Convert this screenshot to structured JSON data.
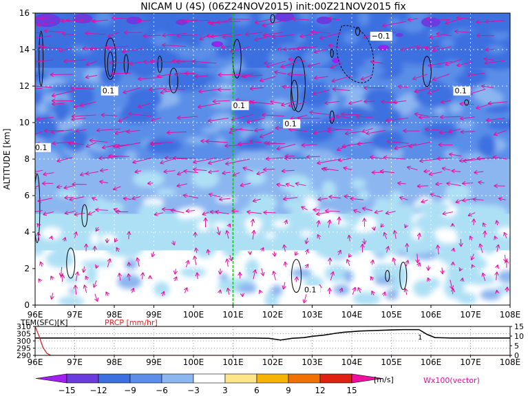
{
  "title": "NICAM U (4S) (06Z24NOV2015) init:00Z21NOV2015 fix",
  "colors": {
    "c_m18": "#a020f0",
    "c_m15": "#6a3ce0",
    "c_m12": "#3c6fe0",
    "c_m9": "#5a8ee8",
    "c_m6": "#8cb6f0",
    "c_m3": "#aee0f5",
    "c_0": "#ffffff",
    "c_3": "#fde68a",
    "c_6": "#f5b400",
    "c_9": "#f07000",
    "c_12": "#e02010",
    "c_15": "#b00000",
    "c_18": "#f010a0",
    "vector": "#e0109c",
    "marker": "#10c010",
    "prcp": "#e02020"
  },
  "chart_data": [
    {
      "type": "heatmap",
      "title": "NICAM U (4S) (06Z24NOV2015) init:00Z21NOV2015 fix",
      "ylabel": "ALTITUDE [km]",
      "xlim": [
        96,
        108
      ],
      "ylim": [
        0,
        16
      ],
      "x_ticks": [
        "96E",
        "97E",
        "98E",
        "99E",
        "100E",
        "101E",
        "102E",
        "103E",
        "104E",
        "105E",
        "106E",
        "107E",
        "108E"
      ],
      "y_ticks": [
        "0",
        "2",
        "4",
        "6",
        "8",
        "10",
        "12",
        "14",
        "16"
      ],
      "marker_lon": 101,
      "contour_labels": [
        {
          "text": "0.1",
          "lon": 97.7,
          "alt": 11.6
        },
        {
          "text": "0.1",
          "lon": 101.0,
          "alt": 10.8
        },
        {
          "text": "0.1",
          "lon": 102.3,
          "alt": 9.8
        },
        {
          "text": "−0.1",
          "lon": 104.5,
          "alt": 14.6
        },
        {
          "text": "0.1",
          "lon": 106.6,
          "alt": 11.6
        },
        {
          "text": "0.1",
          "lon": 96.0,
          "alt": 8.5
        },
        {
          "text": "0.1",
          "lon": 102.8,
          "alt": 0.7
        }
      ],
      "layers": [
        {
          "from_alt": 0,
          "to_alt": 3,
          "u": -1
        },
        {
          "from_alt": 3,
          "to_alt": 5,
          "u": -4
        },
        {
          "from_alt": 5,
          "to_alt": 8,
          "u": -5
        },
        {
          "from_alt": 8,
          "to_alt": 13,
          "u": -9
        },
        {
          "from_alt": 13,
          "to_alt": 16,
          "u": -12
        }
      ],
      "grid": true,
      "legend": "bottom"
    },
    {
      "type": "line",
      "title": "",
      "left_label": "TEM(SFC)[K]",
      "right_label": "PRCP [mm/hr]",
      "xlim": [
        96,
        108
      ],
      "left_ylim": [
        290,
        310
      ],
      "right_ylim": [
        0,
        15
      ],
      "left_ticks": [
        "310",
        "305",
        "300",
        "295",
        "290"
      ],
      "right_ticks": [
        "15",
        "10",
        "5",
        "0"
      ],
      "x_ticks": [
        "96E",
        "97E",
        "98E",
        "99E",
        "100E",
        "101E",
        "102E",
        "103E",
        "104E",
        "105E",
        "106E",
        "107E",
        "108E"
      ],
      "series": [
        {
          "name": "TEM(SFC)[K]",
          "x": [
            96.0,
            96.1,
            96.3,
            97,
            98,
            99,
            100,
            101,
            101.5,
            101.9,
            102.2,
            102.5,
            102.8,
            103.0,
            103.3,
            103.6,
            103.8,
            104.2,
            104.6,
            105.0,
            105.3,
            105.7,
            105.9,
            106.1,
            106.5,
            107,
            107.5,
            108
          ],
          "values": [
            302,
            302,
            302,
            302,
            302,
            302,
            302,
            302,
            302,
            301.8,
            300.6,
            301.8,
            302.3,
            303.2,
            304.0,
            305.3,
            306.0,
            306.8,
            307.2,
            307.6,
            307.8,
            307.8,
            304.5,
            302.3,
            302,
            302,
            302,
            302
          ]
        },
        {
          "name": "PRCP [mm/hr]",
          "x": [
            96.0,
            96.1,
            96.2,
            96.3,
            96.4,
            108
          ],
          "values": [
            15,
            10,
            4,
            1,
            0,
            0
          ]
        }
      ]
    },
    {
      "type": "legend",
      "colorbar_ticks": [
        "−15",
        "−12",
        "−9",
        "−6",
        "−3",
        "3",
        "6",
        "9",
        "12",
        "15"
      ],
      "unit": "[m/s]",
      "vector_label": "Wx100(vector)"
    }
  ]
}
